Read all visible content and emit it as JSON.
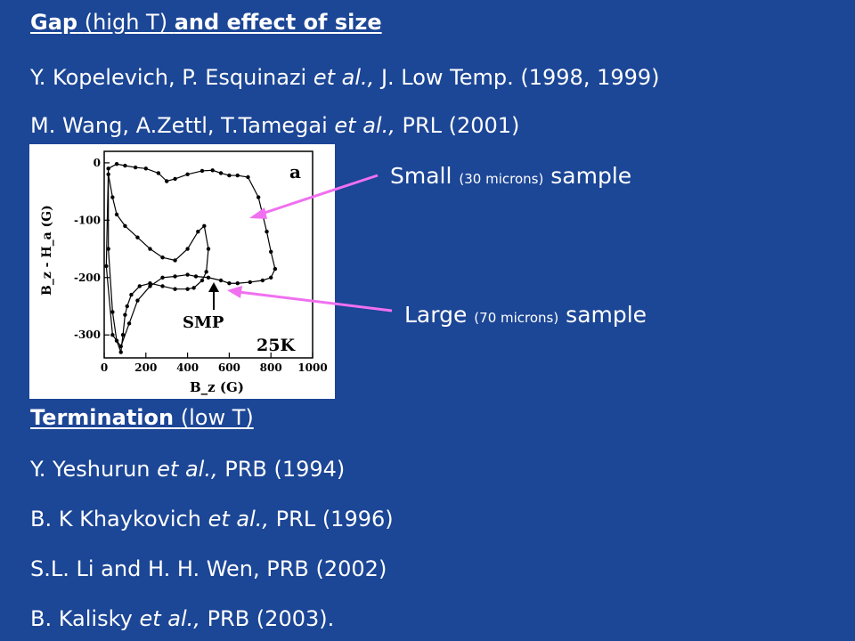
{
  "gap_section": {
    "title_bold1": "Gap",
    "title_plain": "(high T)",
    "title_bold2": "and effect of size",
    "refs": [
      {
        "authors": "Y. Kopelevich, P. Esquinazi",
        "etal": "et al.,",
        "rest": "J. Low Temp. (1998, 1999)"
      },
      {
        "authors": "M. Wang, A.Zettl, T.Tamegai",
        "etal": "et al.,",
        "rest": "PRL (2001)"
      }
    ]
  },
  "annotations": {
    "small_pre": "Small",
    "small_size": "(30 microns)",
    "small_post": "sample",
    "large_pre": "Large",
    "large_size": "(70 microns)",
    "large_post": "sample",
    "arrow_color": "#f070f0"
  },
  "figure": {
    "panel_label": "a",
    "temperature": "25K",
    "smp_label": "SMP",
    "ylabel": "B_z - H_a (G)",
    "xlabel": "B_z (G)",
    "x_ticks": [
      "0",
      "200",
      "400",
      "600",
      "800",
      "1000"
    ],
    "y_ticks": [
      "0",
      "-100",
      "-200",
      "-300"
    ]
  },
  "chart_data": {
    "type": "line",
    "xlabel": "B_z (G)",
    "ylabel": "B_z -H_a (G)",
    "xlim": [
      0,
      1000
    ],
    "ylim": [
      -340,
      20
    ],
    "series": [
      {
        "x": [
          20,
          60,
          100,
          150,
          200,
          260,
          300,
          340,
          400,
          470,
          520,
          560,
          600,
          640,
          690,
          740,
          780,
          800,
          820,
          800,
          760,
          700,
          640,
          600,
          560,
          500,
          440,
          400,
          340,
          280,
          220,
          160,
          120,
          80,
          40,
          10
        ],
        "y": [
          -10,
          -2,
          -5,
          -8,
          -10,
          -18,
          -32,
          -28,
          -20,
          -14,
          -13,
          -18,
          -22,
          -22,
          -25,
          -60,
          -120,
          -155,
          -185,
          -200,
          -205,
          -208,
          -210,
          -210,
          -205,
          -200,
          -198,
          -195,
          -198,
          -200,
          -215,
          -240,
          -280,
          -320,
          -300,
          -180
        ]
      },
      {
        "x": [
          20,
          40,
          60,
          100,
          160,
          220,
          280,
          340,
          400,
          450,
          480,
          500,
          490,
          470,
          430,
          400,
          340,
          280,
          220,
          170,
          130,
          110,
          100,
          90,
          80,
          60,
          40,
          20
        ],
        "y": [
          -20,
          -60,
          -90,
          -110,
          -130,
          -150,
          -165,
          -170,
          -150,
          -120,
          -110,
          -150,
          -190,
          -205,
          -218,
          -220,
          -220,
          -215,
          -210,
          -215,
          -230,
          -250,
          -265,
          -300,
          -330,
          -310,
          -260,
          -150
        ]
      }
    ]
  },
  "termination_section": {
    "title_bold": "Termination",
    "title_plain": "(low T)",
    "refs": [
      {
        "authors": "Y. Yeshurun",
        "etal": "et al.,",
        "rest": "PRB (1994)"
      },
      {
        "authors": "B. K Khaykovich",
        "etal": "et al.,",
        "rest": "PRL (1996)"
      },
      {
        "authors": "S.L. Li and H. H. Wen, PRB (2002)",
        "etal": "",
        "rest": ""
      },
      {
        "authors": "B. Kalisky",
        "etal": "et al.,",
        "rest": "PRB (2003)."
      }
    ]
  }
}
